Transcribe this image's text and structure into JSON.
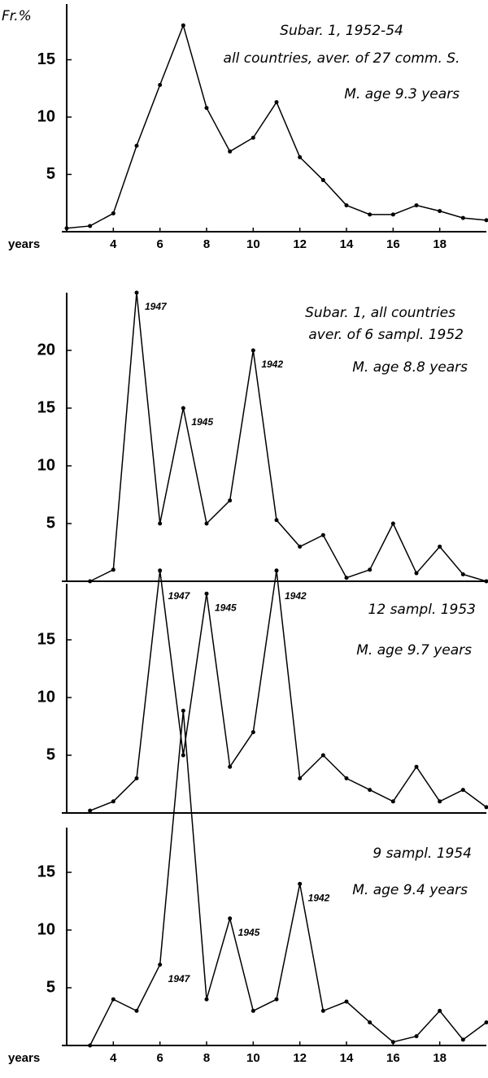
{
  "chart_data": [
    {
      "type": "line",
      "ylabel": "Fr.%",
      "xlabel": "years",
      "notes": [
        "Subar. 1, 1952-54",
        "all countries, aver. of 27 comm. S.",
        "M. age 9.3 years"
      ],
      "x": [
        2,
        3,
        4,
        5,
        6,
        7,
        8,
        9,
        10,
        11,
        12,
        13,
        14,
        15,
        16,
        17,
        18,
        19,
        20
      ],
      "values": [
        0.3,
        0.5,
        1.6,
        7.5,
        12.8,
        18,
        10.8,
        7,
        8.2,
        11.3,
        6.5,
        4.5,
        2.3,
        1.5,
        1.5,
        2.3,
        1.8,
        1.2,
        1.0
      ],
      "xlim": [
        2,
        20
      ],
      "ylim": [
        0,
        20
      ],
      "yticks": [
        5,
        10,
        15
      ],
      "xticks": [
        4,
        6,
        8,
        10,
        12,
        14,
        16,
        18
      ],
      "annotations": []
    },
    {
      "type": "line",
      "notes": [
        "Subar. 1, all countries",
        "aver. of 6 sampl. 1952",
        "M. age 8.8 years"
      ],
      "x": [
        3,
        4,
        5,
        6,
        7,
        8,
        9,
        10,
        11,
        12,
        13,
        14,
        15,
        16,
        17,
        18,
        19,
        20
      ],
      "values": [
        0,
        1,
        25,
        5,
        15,
        5,
        7,
        20,
        5.3,
        3,
        4,
        0.3,
        1,
        5,
        0.7,
        3,
        0.6,
        0
      ],
      "xlim": [
        2,
        20
      ],
      "ylim": [
        0,
        25
      ],
      "yticks": [
        5,
        10,
        15,
        20
      ],
      "annotations": [
        {
          "text": "1947",
          "x": 5
        },
        {
          "text": "1945",
          "x": 7
        },
        {
          "text": "1942",
          "x": 10
        }
      ]
    },
    {
      "type": "line",
      "notes": [
        "12 sampl. 1953",
        "M. age 9.7 years"
      ],
      "x": [
        3,
        4,
        5,
        6,
        7,
        8,
        9,
        10,
        11,
        12,
        13,
        14,
        15,
        16,
        17,
        18,
        19,
        20
      ],
      "values": [
        0.2,
        1,
        3,
        21,
        5,
        19,
        4,
        7,
        21,
        3,
        5,
        3,
        2,
        1,
        4,
        1,
        2,
        0.5
      ],
      "xlim": [
        2,
        20
      ],
      "ylim": [
        0,
        20
      ],
      "yticks": [
        5,
        10,
        15
      ],
      "annotations": [
        {
          "text": "1947",
          "x": 6
        },
        {
          "text": "1945",
          "x": 8
        },
        {
          "text": "1942",
          "x": 11
        }
      ]
    },
    {
      "type": "line",
      "xlabel": "years",
      "notes": [
        "9 sampl. 1954",
        "M. age 9.4 years"
      ],
      "x": [
        3,
        4,
        5,
        6,
        7,
        8,
        9,
        10,
        11,
        12,
        13,
        14,
        15,
        16,
        17,
        18,
        19,
        20
      ],
      "values": [
        0,
        4,
        3,
        7,
        29,
        4,
        11,
        3,
        4,
        14,
        3,
        3.8,
        2,
        0.3,
        0.8,
        3,
        0.5,
        2
      ],
      "xlim": [
        2,
        20
      ],
      "ylim": [
        0,
        20
      ],
      "yticks": [
        5,
        10,
        15
      ],
      "xticks": [
        4,
        6,
        8,
        10,
        12,
        14,
        16,
        18
      ],
      "annotations": [
        {
          "text": "1947",
          "x": 6
        },
        {
          "text": "1945",
          "x": 9
        },
        {
          "text": "1942",
          "x": 12
        }
      ]
    }
  ]
}
